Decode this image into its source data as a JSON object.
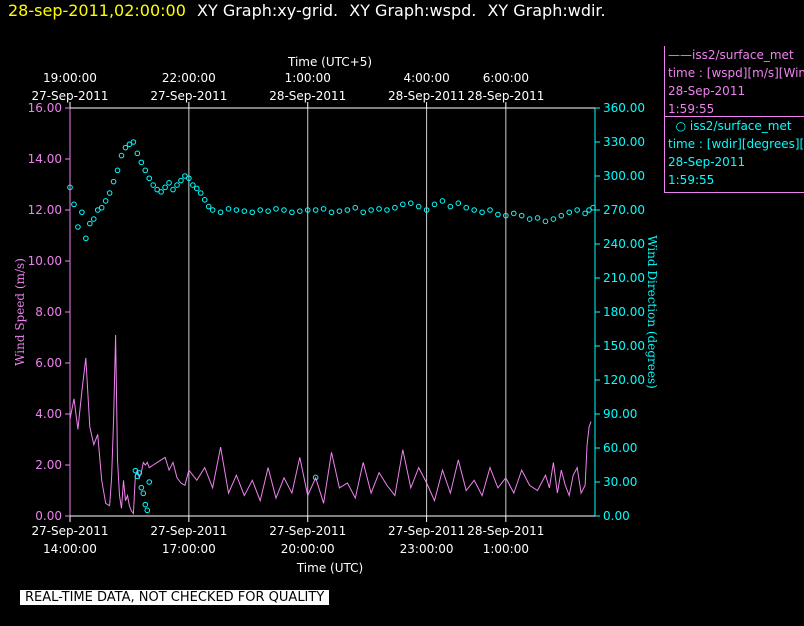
{
  "header": {
    "timestamp": "28-sep-2011,02:00:00",
    "graphs": [
      "XY Graph:xy-grid.",
      "XY Graph:wspd.",
      "XY Graph:wdir."
    ]
  },
  "legend": [
    {
      "title": "iss2/surface_met",
      "line1": "time : [wspd][m/s][Wind",
      "date": "28-Sep-2011",
      "time": "1:59:55",
      "marker": "line",
      "color": "#ee82ee"
    },
    {
      "title": "iss2/surface_met",
      "line1": "time : [wdir][degrees][W",
      "date": "28-Sep-2011",
      "time": "1:59:55",
      "marker": "circle",
      "color": "#00ffff"
    }
  ],
  "footer": "REAL-TIME DATA, NOT CHECKED FOR QUALITY",
  "chart_data": {
    "type": "line",
    "x_top_title": "Time (UTC+5)",
    "x_bottom_title": "Time (UTC)",
    "ylabel_left": "Wind Speed (m/s)",
    "ylabel_right": "Wind Direction (degrees)",
    "x_range_hours_utc": [
      14,
      27.25
    ],
    "ylim_left": [
      0,
      16
    ],
    "ylim_right": [
      0,
      360
    ],
    "left_ticks": [
      "0.00",
      "2.00",
      "4.00",
      "6.00",
      "8.00",
      "10.00",
      "12.00",
      "14.00",
      "16.00"
    ],
    "right_ticks": [
      "0.00",
      "30.00",
      "60.00",
      "90.00",
      "120.00",
      "150.00",
      "180.00",
      "210.00",
      "240.00",
      "270.00",
      "300.00",
      "330.00",
      "360.00"
    ],
    "bottom_ticks": [
      {
        "hour": 14,
        "date": "27-Sep-2011",
        "time": "14:00:00"
      },
      {
        "hour": 17,
        "date": "27-Sep-2011",
        "time": "17:00:00"
      },
      {
        "hour": 20,
        "date": "27-Sep-2011",
        "time": "20:00:00"
      },
      {
        "hour": 23,
        "date": "27-Sep-2011",
        "time": "23:00:00"
      },
      {
        "hour": 25,
        "date": "28-Sep-2011",
        "time": "1:00:00"
      }
    ],
    "top_ticks": [
      {
        "hour": 14,
        "time": "19:00:00",
        "date": "27-Sep-2011"
      },
      {
        "hour": 17,
        "time": "22:00:00",
        "date": "27-Sep-2011"
      },
      {
        "hour": 20,
        "time": "1:00:00",
        "date": "28-Sep-2011"
      },
      {
        "hour": 23,
        "time": "4:00:00",
        "date": "28-Sep-2011"
      },
      {
        "hour": 25,
        "time": "6:00:00",
        "date": "28-Sep-2011"
      }
    ],
    "grid": "vertical",
    "series": [
      {
        "name": "iss2/surface_met wspd",
        "axis": "left",
        "style": "line",
        "color": "#ee82ee",
        "x": [
          14.0,
          14.1,
          14.2,
          14.3,
          14.4,
          14.5,
          14.6,
          14.7,
          14.8,
          14.9,
          15.0,
          15.05,
          15.1,
          15.15,
          15.2,
          15.25,
          15.3,
          15.35,
          15.4,
          15.45,
          15.5,
          15.55,
          15.6,
          15.65,
          15.7,
          15.75,
          15.8,
          15.85,
          15.9,
          15.95,
          16.0,
          16.1,
          16.2,
          16.3,
          16.4,
          16.5,
          16.6,
          16.7,
          16.8,
          16.9,
          17.0,
          17.2,
          17.4,
          17.6,
          17.8,
          18.0,
          18.2,
          18.4,
          18.6,
          18.8,
          19.0,
          19.2,
          19.4,
          19.6,
          19.8,
          20.0,
          20.2,
          20.4,
          20.6,
          20.8,
          21.0,
          21.2,
          21.4,
          21.6,
          21.8,
          22.0,
          22.2,
          22.4,
          22.6,
          22.8,
          23.0,
          23.2,
          23.4,
          23.6,
          23.8,
          24.0,
          24.2,
          24.4,
          24.6,
          24.8,
          25.0,
          25.2,
          25.4,
          25.6,
          25.8,
          26.0,
          26.1,
          26.2,
          26.3,
          26.4,
          26.5,
          26.6,
          26.7,
          26.8,
          26.9,
          27.0,
          27.05,
          27.1,
          27.15
        ],
        "values": [
          3.8,
          4.6,
          3.4,
          4.9,
          6.2,
          3.5,
          2.8,
          3.2,
          1.4,
          0.5,
          0.4,
          1.5,
          3.8,
          7.1,
          2.2,
          0.8,
          0.3,
          1.4,
          0.6,
          0.8,
          0.4,
          0.2,
          0.1,
          1.6,
          1.8,
          1.5,
          1.7,
          2.1,
          2.0,
          2.1,
          1.9,
          2.0,
          2.1,
          2.2,
          2.3,
          1.8,
          2.1,
          1.5,
          1.3,
          1.2,
          1.8,
          1.4,
          1.9,
          1.1,
          2.7,
          0.9,
          1.6,
          0.8,
          1.4,
          0.6,
          1.9,
          0.7,
          1.5,
          0.9,
          2.3,
          0.8,
          1.5,
          0.5,
          2.5,
          1.1,
          1.3,
          0.7,
          2.1,
          0.9,
          1.7,
          1.2,
          0.8,
          2.6,
          1.1,
          1.9,
          1.3,
          0.6,
          1.8,
          0.9,
          2.2,
          1.0,
          1.4,
          0.8,
          1.9,
          1.1,
          1.5,
          0.9,
          1.8,
          1.2,
          1.0,
          1.6,
          1.1,
          2.1,
          0.9,
          1.8,
          1.2,
          0.8,
          1.6,
          1.9,
          0.9,
          1.2,
          2.8,
          3.5,
          3.7
        ]
      },
      {
        "name": "iss2/surface_met wdir",
        "axis": "right",
        "style": "circles",
        "color": "#00ffff",
        "x": [
          14.0,
          14.1,
          14.2,
          14.3,
          14.4,
          14.5,
          14.6,
          14.7,
          14.8,
          14.9,
          15.0,
          15.1,
          15.2,
          15.3,
          15.4,
          15.5,
          15.6,
          15.7,
          15.8,
          15.9,
          16.0,
          16.1,
          16.2,
          16.3,
          16.4,
          16.5,
          16.6,
          16.7,
          16.8,
          16.9,
          17.0,
          17.1,
          17.2,
          17.3,
          17.4,
          17.5,
          17.6,
          17.8,
          18.0,
          18.2,
          18.4,
          18.6,
          18.8,
          19.0,
          19.2,
          19.4,
          19.6,
          19.8,
          20.0,
          20.2,
          20.4,
          20.6,
          20.8,
          21.0,
          21.2,
          21.4,
          21.6,
          21.8,
          22.0,
          22.2,
          22.4,
          22.6,
          22.8,
          23.0,
          23.2,
          23.4,
          23.6,
          23.8,
          24.0,
          24.2,
          24.4,
          24.6,
          24.8,
          25.0,
          25.2,
          25.4,
          25.6,
          25.8,
          26.0,
          26.2,
          26.4,
          26.6,
          26.8,
          27.0,
          27.1,
          27.2
        ],
        "values": [
          290,
          275,
          255,
          268,
          245,
          258,
          262,
          270,
          272,
          278,
          285,
          295,
          305,
          318,
          325,
          328,
          330,
          320,
          312,
          305,
          298,
          292,
          288,
          286,
          290,
          294,
          288,
          292,
          296,
          300,
          298,
          292,
          289,
          285,
          279,
          273,
          270,
          268,
          271,
          270,
          269,
          268,
          270,
          269,
          271,
          270,
          268,
          269,
          270,
          270,
          271,
          268,
          269,
          270,
          272,
          268,
          270,
          271,
          270,
          272,
          275,
          276,
          273,
          270,
          275,
          278,
          273,
          276,
          272,
          270,
          268,
          270,
          266,
          265,
          267,
          265,
          262,
          263,
          260,
          262,
          265,
          268,
          270,
          267,
          270,
          272
        ]
      },
      {
        "name": "iss2/surface_met wdir low",
        "axis": "right",
        "style": "circles",
        "color": "#00ffff",
        "x": [
          15.65,
          15.7,
          15.75,
          15.8,
          15.85,
          15.9,
          15.95,
          16.0,
          20.2
        ],
        "values": [
          40,
          35,
          38,
          25,
          20,
          10,
          5,
          30,
          34
        ]
      }
    ]
  }
}
